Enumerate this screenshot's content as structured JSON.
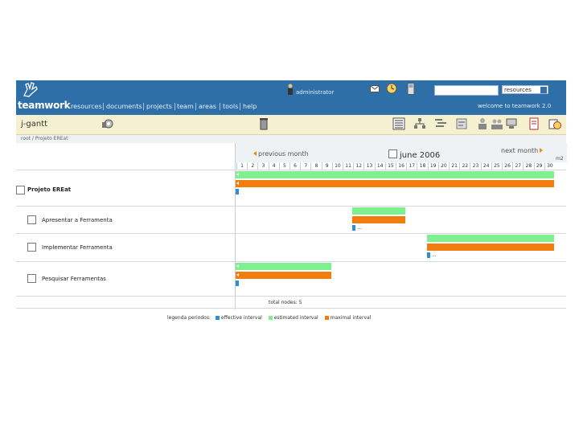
{
  "colors": {
    "header": "#2f6fa8",
    "toolbar": "#f5f0cf",
    "estimated": "#7ef090",
    "maximal": "#f27c0e",
    "effective": "#2b8fd6"
  },
  "header": {
    "logo": "teamwork",
    "nav": [
      "resources",
      "documents",
      "projects",
      "team",
      "areas",
      "tools",
      "help"
    ],
    "user": "administrator",
    "search_placeholder": "",
    "search_select": "resources",
    "welcome": "welcome to teamwork 2.0"
  },
  "toolbar": {
    "title": "j-gantt"
  },
  "breadcrumb": "root / Projeto EREat",
  "gantt": {
    "prev": "previous month",
    "next": "next month",
    "month": "june 2006",
    "corner": "m2",
    "days": [
      "1",
      "2",
      "3",
      "4",
      "5",
      "6",
      "7",
      "8",
      "9",
      "10",
      "11",
      "12",
      "13",
      "14",
      "15",
      "16",
      "17",
      "18",
      "19",
      "20",
      "21",
      "22",
      "23",
      "24",
      "25",
      "26",
      "27",
      "28",
      "29",
      "30"
    ],
    "tasks": [
      {
        "name": "Projeto EREat",
        "est": [
          1,
          30
        ],
        "max": [
          1,
          30
        ],
        "eff": [
          1,
          1
        ],
        "note": ""
      },
      {
        "name": "Apresentar a Ferramenta",
        "est": [
          12,
          16
        ],
        "max": [
          12,
          16
        ],
        "eff": [
          12,
          12
        ],
        "note": "..."
      },
      {
        "name": "Implementar Ferramenta",
        "est": [
          19,
          30
        ],
        "max": [
          19,
          30
        ],
        "eff": [
          19,
          19
        ],
        "note": "..."
      },
      {
        "name": "Pesquisar Ferramentas",
        "est": [
          1,
          9
        ],
        "max": [
          1,
          9
        ],
        "eff": [
          1,
          1
        ],
        "note": ""
      }
    ],
    "total_nodes_label": "total nodes:",
    "total_nodes": "5",
    "legend": {
      "title": "legenda periodos:",
      "effective": "effective interval",
      "estimated": "estimated interval",
      "maximal": "maximal interval"
    }
  }
}
